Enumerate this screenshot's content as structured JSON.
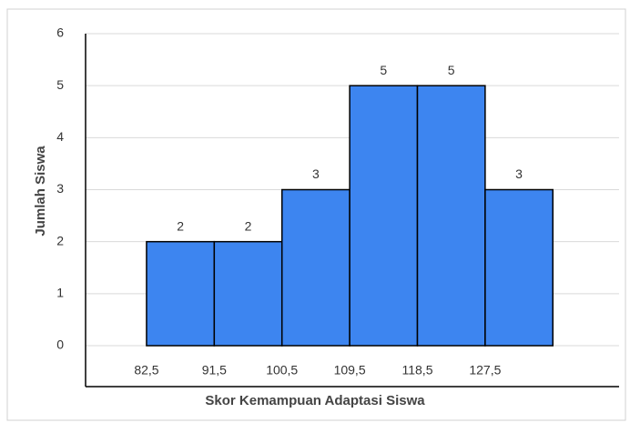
{
  "chart_data": {
    "type": "histogram",
    "x_label": "Skor Kemampuan Adaptasi Siswa",
    "y_label": "Jumlah Siswa",
    "bins": [
      82.5,
      91.5,
      100.5,
      109.5,
      118.5,
      127.5,
      136.5
    ],
    "values": [
      2,
      2,
      3,
      5,
      5,
      3
    ],
    "color": "#3d85f0",
    "xlim": [
      74.4,
      145.3
    ],
    "xticks": [
      {
        "value": 82.5,
        "label": "82,5"
      },
      {
        "value": 91.5,
        "label": "91,5"
      },
      {
        "value": 100.5,
        "label": "100,5"
      },
      {
        "value": 109.5,
        "label": "109,5"
      },
      {
        "value": 118.5,
        "label": "118,5"
      },
      {
        "value": 127.5,
        "label": "127,5"
      }
    ],
    "ylim": [
      0,
      6
    ],
    "yticks": [
      0,
      1,
      2,
      3,
      4,
      5,
      6
    ],
    "grid": true
  }
}
